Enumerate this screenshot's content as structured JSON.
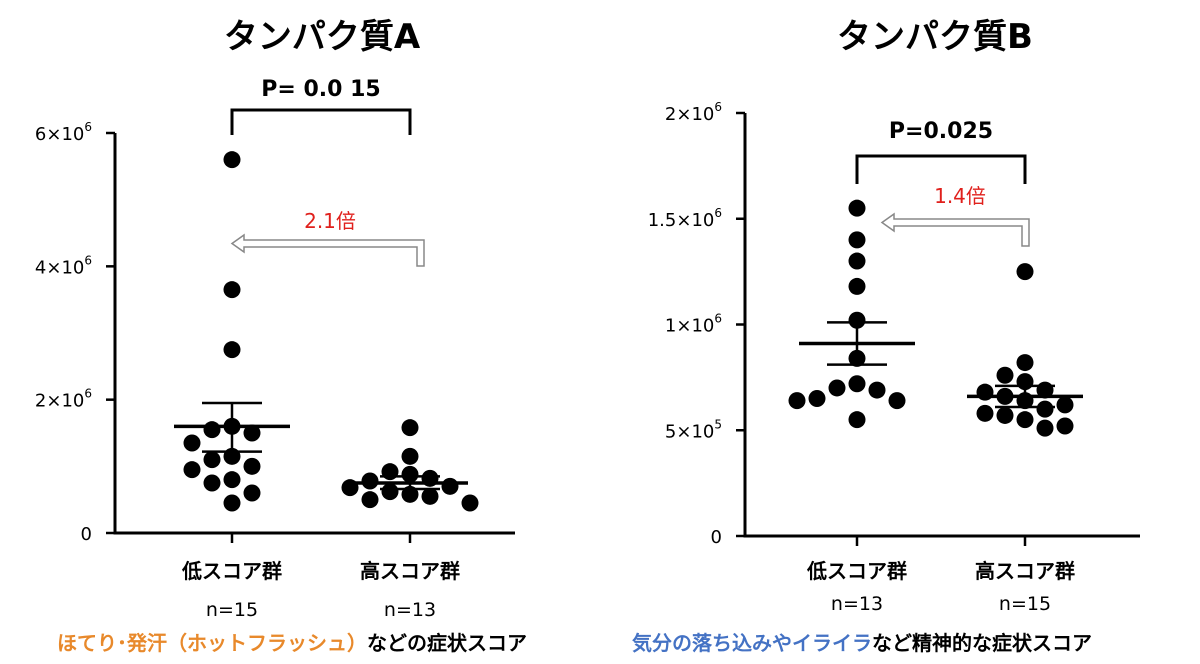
{
  "chart_data": [
    {
      "type": "scatter",
      "title": "タンパク質A",
      "categories": [
        "低スコア群",
        "高スコア群"
      ],
      "n_labels": [
        "n=15",
        "n=13"
      ],
      "ylim": [
        0,
        6000000
      ],
      "yticks": [
        {
          "value": 0,
          "base": "0",
          "exp": ""
        },
        {
          "value": 2000000,
          "base": "2×10",
          "exp": "6"
        },
        {
          "value": 4000000,
          "base": "4×10",
          "exp": "6"
        },
        {
          "value": 6000000,
          "base": "6×10",
          "exp": "6"
        }
      ],
      "series": [
        {
          "category": "低スコア群",
          "values": [
            5600000,
            3650000,
            2750000,
            1600000,
            1550000,
            1500000,
            1350000,
            1150000,
            1100000,
            1000000,
            950000,
            800000,
            750000,
            600000,
            450000
          ],
          "mean": 1600000,
          "sem_low": 1220000,
          "sem_high": 1950000
        },
        {
          "category": "高スコア群",
          "values": [
            1580000,
            1150000,
            920000,
            880000,
            820000,
            780000,
            700000,
            680000,
            620000,
            580000,
            550000,
            500000,
            450000
          ],
          "mean": 750000,
          "sem_low": 660000,
          "sem_high": 850000
        }
      ],
      "p_value": "P= 0.0 15",
      "fold_change": "2.1倍",
      "caption": {
        "colored": "ほてり･発汗（ホットフラッシュ）",
        "rest": "などの症状スコア",
        "color": "#e8892b"
      }
    },
    {
      "type": "scatter",
      "title": "タンパク質B",
      "categories": [
        "低スコア群",
        "高スコア群"
      ],
      "n_labels": [
        "n=13",
        "n=15"
      ],
      "ylim": [
        0,
        2000000
      ],
      "yticks": [
        {
          "value": 0,
          "base": "0",
          "exp": ""
        },
        {
          "value": 500000,
          "base": "5×10",
          "exp": "5"
        },
        {
          "value": 1000000,
          "base": "1×10",
          "exp": "6"
        },
        {
          "value": 1500000,
          "base": "1.5×10",
          "exp": "6"
        },
        {
          "value": 2000000,
          "base": "2×10",
          "exp": "6"
        }
      ],
      "series": [
        {
          "category": "低スコア群",
          "values": [
            1550000,
            1400000,
            1300000,
            1180000,
            1020000,
            840000,
            720000,
            700000,
            690000,
            650000,
            640000,
            640000,
            550000
          ],
          "mean": 910000,
          "sem_low": 810000,
          "sem_high": 1010000
        },
        {
          "category": "高スコア群",
          "values": [
            1250000,
            820000,
            760000,
            730000,
            690000,
            680000,
            660000,
            640000,
            620000,
            600000,
            580000,
            570000,
            550000,
            520000,
            510000
          ],
          "mean": 660000,
          "sem_low": 610000,
          "sem_high": 710000
        }
      ],
      "p_value": "P=0.025",
      "fold_change": "1.4倍",
      "caption": {
        "colored": "気分の落ち込みやイライラ",
        "rest": "など精神的な症状スコア",
        "color": "#4472c4"
      }
    }
  ]
}
